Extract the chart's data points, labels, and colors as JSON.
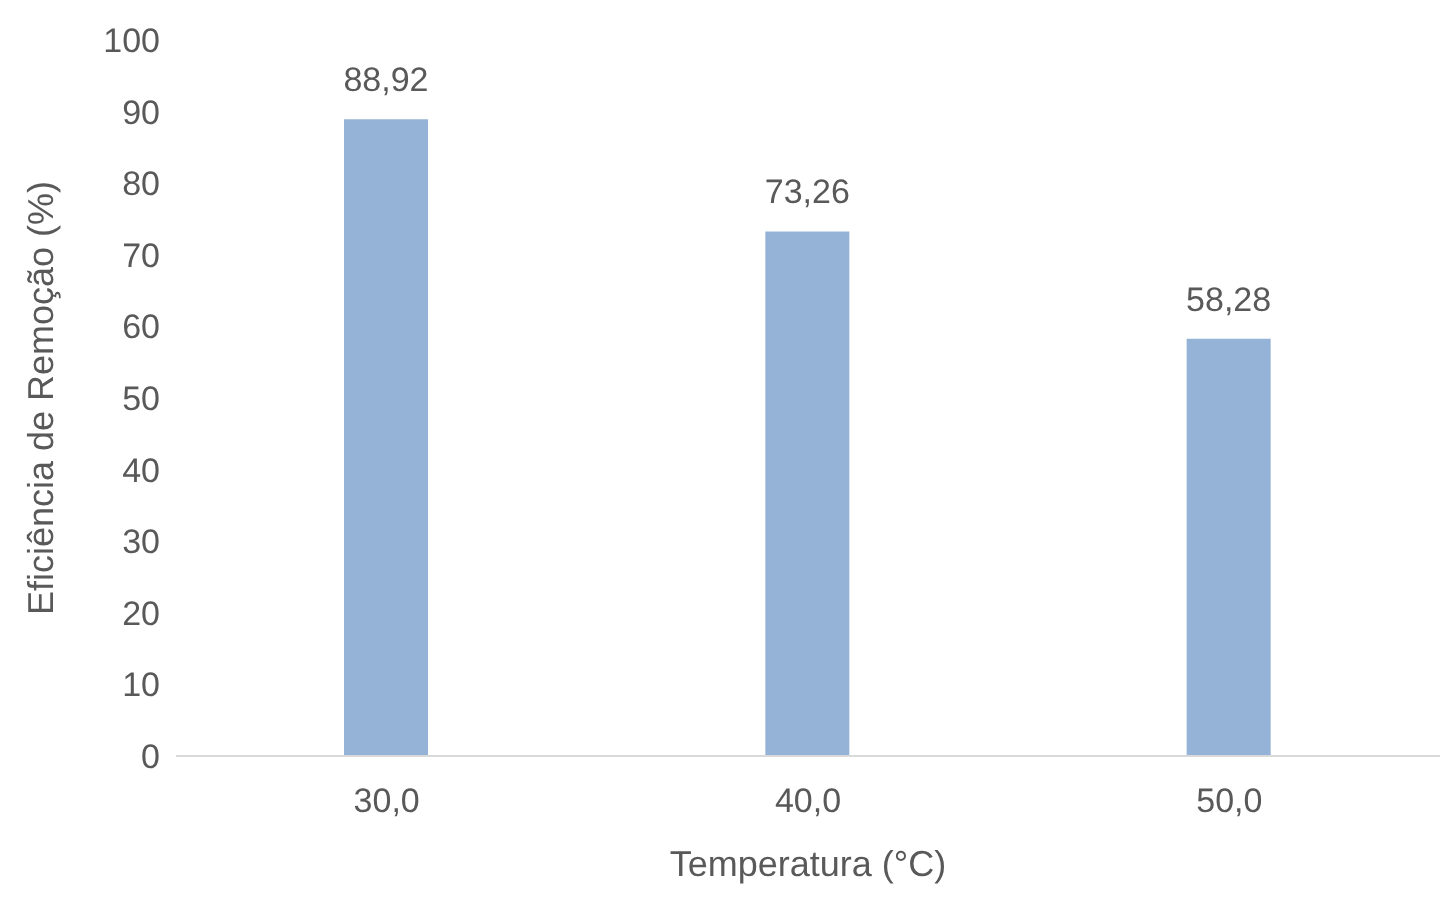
{
  "chart_data": {
    "type": "bar",
    "xlabel": "Temperatura (°C)",
    "ylabel": "Eficiência de Remoção (%)",
    "categories": [
      "30,0",
      "40,0",
      "50,0"
    ],
    "values": [
      88.92,
      73.26,
      58.28
    ],
    "value_labels": [
      "88,92",
      "73,26",
      "58,28"
    ],
    "color": "#95b3d7",
    "ylim": [
      0,
      100
    ],
    "yticks": [
      0,
      10,
      20,
      30,
      40,
      50,
      60,
      70,
      80,
      90,
      100
    ],
    "grid": false,
    "legend": false
  }
}
